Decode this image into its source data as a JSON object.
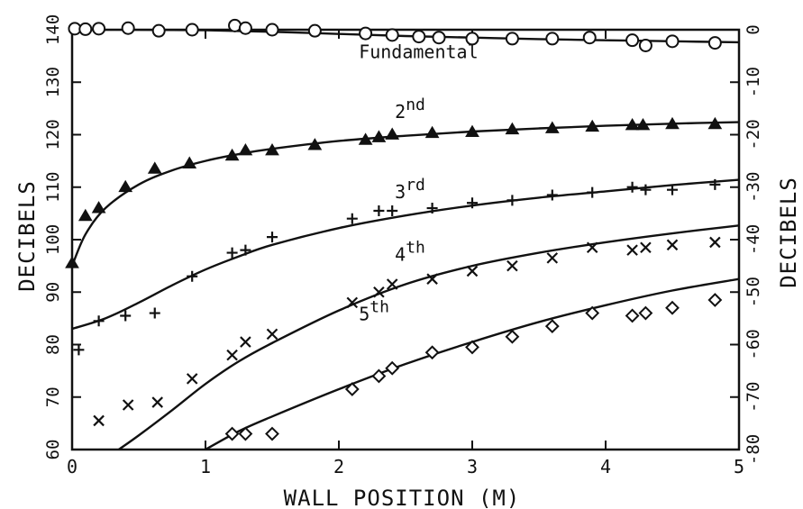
{
  "chart_data": {
    "type": "scatter",
    "title": "",
    "xlabel": "WALL POSITION (M)",
    "ylabel": "DECIBELS",
    "y2label": "DECIBELS",
    "xlim": [
      0,
      5
    ],
    "ylim": [
      60,
      140
    ],
    "y2lim": [
      -80,
      0
    ],
    "xticks": [
      "0",
      "1",
      "2",
      "3",
      "4",
      "5"
    ],
    "yticks": [
      "60",
      "70",
      "80",
      "90",
      "100",
      "110",
      "120",
      "130",
      "140"
    ],
    "y2ticks": [
      "-80",
      "-70",
      "-60",
      "-50",
      "-40",
      "-30",
      "-20",
      "-10",
      "0"
    ],
    "grid": false,
    "series": [
      {
        "name": "Fundamental",
        "marker": "circle",
        "points": [
          [
            0.02,
            140.2
          ],
          [
            0.1,
            140.1
          ],
          [
            0.2,
            140.2
          ],
          [
            0.42,
            140.3
          ],
          [
            0.65,
            139.8
          ],
          [
            0.9,
            140.0
          ],
          [
            1.22,
            140.8
          ],
          [
            1.3,
            140.3
          ],
          [
            1.5,
            140.0
          ],
          [
            1.82,
            139.8
          ],
          [
            2.2,
            139.3
          ],
          [
            2.4,
            139.0
          ],
          [
            2.6,
            138.7
          ],
          [
            2.75,
            138.5
          ],
          [
            3.0,
            138.3
          ],
          [
            3.3,
            138.3
          ],
          [
            3.6,
            138.3
          ],
          [
            3.88,
            138.5
          ],
          [
            4.2,
            138.0
          ],
          [
            4.3,
            137.0
          ],
          [
            4.5,
            137.8
          ],
          [
            4.82,
            137.5
          ]
        ],
        "curve": [
          [
            0,
            140
          ],
          [
            0.5,
            140
          ],
          [
            1.0,
            139.9
          ],
          [
            1.5,
            139.6
          ],
          [
            2.0,
            139.2
          ],
          [
            2.5,
            138.8
          ],
          [
            3.0,
            138.5
          ],
          [
            3.5,
            138.2
          ],
          [
            4.0,
            138.0
          ],
          [
            4.5,
            137.8
          ],
          [
            5.0,
            137.6
          ]
        ]
      },
      {
        "name": "2nd",
        "marker": "triangle",
        "points": [
          [
            0.0,
            95.5
          ],
          [
            0.1,
            104.5
          ],
          [
            0.2,
            106
          ],
          [
            0.4,
            110
          ],
          [
            0.62,
            113.5
          ],
          [
            0.88,
            114.5
          ],
          [
            1.2,
            116
          ],
          [
            1.3,
            117
          ],
          [
            1.5,
            117
          ],
          [
            1.82,
            118
          ],
          [
            2.2,
            119
          ],
          [
            2.3,
            119.5
          ],
          [
            2.4,
            120
          ],
          [
            2.7,
            120.3
          ],
          [
            3.0,
            120.5
          ],
          [
            3.3,
            121
          ],
          [
            3.6,
            121.2
          ],
          [
            3.9,
            121.5
          ],
          [
            4.2,
            121.8
          ],
          [
            4.28,
            121.8
          ],
          [
            4.5,
            122
          ],
          [
            4.82,
            122
          ]
        ],
        "curve": [
          [
            0,
            95
          ],
          [
            0.1,
            101
          ],
          [
            0.25,
            106
          ],
          [
            0.5,
            110.5
          ],
          [
            0.75,
            113.2
          ],
          [
            1.0,
            115
          ],
          [
            1.25,
            116.3
          ],
          [
            1.5,
            117.3
          ],
          [
            2.0,
            118.8
          ],
          [
            2.5,
            119.8
          ],
          [
            3.0,
            120.6
          ],
          [
            3.5,
            121.2
          ],
          [
            4.0,
            121.7
          ],
          [
            4.5,
            122.1
          ],
          [
            5.0,
            122.4
          ]
        ]
      },
      {
        "name": "3rd",
        "marker": "plus",
        "points": [
          [
            0.05,
            79
          ],
          [
            0.2,
            84.5
          ],
          [
            0.4,
            85.5
          ],
          [
            0.62,
            86
          ],
          [
            0.9,
            93
          ],
          [
            1.2,
            97.5
          ],
          [
            1.3,
            98
          ],
          [
            1.5,
            100.5
          ],
          [
            2.1,
            104
          ],
          [
            2.3,
            105.5
          ],
          [
            2.4,
            105.5
          ],
          [
            2.7,
            106
          ],
          [
            3.0,
            107
          ],
          [
            3.3,
            107.5
          ],
          [
            3.6,
            108.5
          ],
          [
            3.9,
            109
          ],
          [
            4.2,
            110
          ],
          [
            4.3,
            109.5
          ],
          [
            4.5,
            109.5
          ],
          [
            4.82,
            110.5
          ]
        ],
        "curve": [
          [
            0,
            83
          ],
          [
            0.25,
            85
          ],
          [
            0.5,
            88
          ],
          [
            0.75,
            91.3
          ],
          [
            1.0,
            94.3
          ],
          [
            1.25,
            96.8
          ],
          [
            1.5,
            99
          ],
          [
            2.0,
            102.2
          ],
          [
            2.5,
            104.6
          ],
          [
            3.0,
            106.5
          ],
          [
            3.5,
            108
          ],
          [
            4.0,
            109.2
          ],
          [
            4.5,
            110.4
          ],
          [
            5.0,
            111.4
          ]
        ]
      },
      {
        "name": "4th",
        "marker": "x",
        "points": [
          [
            0.2,
            65.5
          ],
          [
            0.42,
            68.5
          ],
          [
            0.64,
            69
          ],
          [
            0.9,
            73.5
          ],
          [
            1.2,
            78
          ],
          [
            1.3,
            80.5
          ],
          [
            1.5,
            82
          ],
          [
            2.1,
            88
          ],
          [
            2.3,
            90
          ],
          [
            2.4,
            91.5
          ],
          [
            2.7,
            92.5
          ],
          [
            3.0,
            94
          ],
          [
            3.3,
            95
          ],
          [
            3.6,
            96.5
          ],
          [
            3.9,
            98.5
          ],
          [
            4.2,
            98
          ],
          [
            4.3,
            98.5
          ],
          [
            4.5,
            99
          ],
          [
            4.82,
            99.5
          ]
        ],
        "curve": [
          [
            0.35,
            60
          ],
          [
            0.5,
            62.7
          ],
          [
            0.75,
            67.5
          ],
          [
            1.0,
            72.5
          ],
          [
            1.25,
            76.8
          ],
          [
            1.5,
            80.3
          ],
          [
            2.0,
            86.5
          ],
          [
            2.5,
            91.5
          ],
          [
            3.0,
            95
          ],
          [
            3.5,
            97.5
          ],
          [
            4.0,
            99.5
          ],
          [
            4.5,
            101.2
          ],
          [
            5.0,
            102.7
          ]
        ]
      },
      {
        "name": "5th",
        "marker": "diamond",
        "points": [
          [
            1.2,
            63
          ],
          [
            1.3,
            63
          ],
          [
            1.5,
            63
          ],
          [
            2.1,
            71.5
          ],
          [
            2.3,
            74
          ],
          [
            2.4,
            75.5
          ],
          [
            2.7,
            78.5
          ],
          [
            3.0,
            79.5
          ],
          [
            3.3,
            81.5
          ],
          [
            3.6,
            83.5
          ],
          [
            3.9,
            86
          ],
          [
            4.2,
            85.5
          ],
          [
            4.3,
            86
          ],
          [
            4.5,
            87
          ],
          [
            4.82,
            88.5
          ]
        ],
        "curve": [
          [
            1.0,
            60
          ],
          [
            1.25,
            63.5
          ],
          [
            1.5,
            66.3
          ],
          [
            2.0,
            71.5
          ],
          [
            2.5,
            76.3
          ],
          [
            3.0,
            80.5
          ],
          [
            3.5,
            84.3
          ],
          [
            4.0,
            87.5
          ],
          [
            4.5,
            90.3
          ],
          [
            5.0,
            92.5
          ]
        ]
      }
    ],
    "labels": [
      {
        "text": "Fundamental",
        "sup": "",
        "x": 2.15,
        "y": 134.6
      },
      {
        "text": "2",
        "sup": "nd",
        "x": 2.42,
        "y": 123.2
      },
      {
        "text": "3",
        "sup": "rd",
        "x": 2.42,
        "y": 107.9
      },
      {
        "text": "4",
        "sup": "th",
        "x": 2.42,
        "y": 96.0
      },
      {
        "text": "5",
        "sup": "th",
        "x": 2.15,
        "y": 84.6
      }
    ]
  }
}
